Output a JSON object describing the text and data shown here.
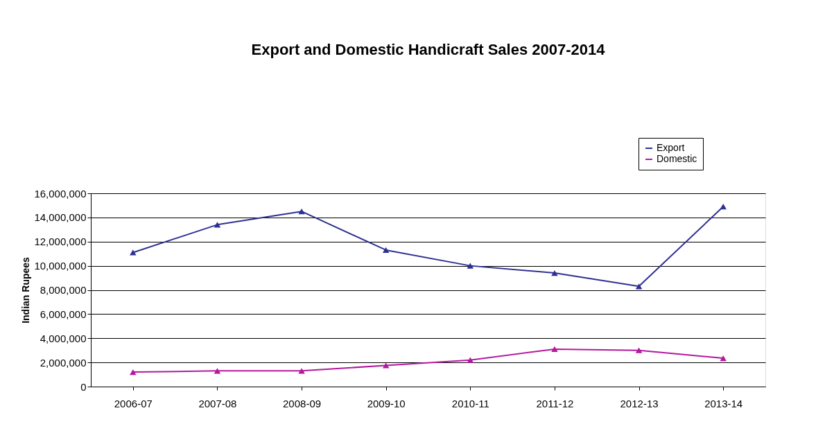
{
  "chart_data": {
    "type": "line",
    "title": "Export and Domestic Handicraft Sales 2007-2014",
    "ylabel": "Indian Rupees",
    "categories": [
      "2006-07",
      "2007-08",
      "2008-09",
      "2009-10",
      "2010-11",
      "2011-12",
      "2012-13",
      "2013-14"
    ],
    "series": [
      {
        "name": "Export",
        "color": "#2e3192",
        "values": [
          11100000,
          13400000,
          14500000,
          11300000,
          10000000,
          9400000,
          8300000,
          14900000
        ]
      },
      {
        "name": "Domestic",
        "color": "#b5179e",
        "values": [
          1200000,
          1300000,
          1300000,
          1750000,
          2200000,
          3100000,
          3000000,
          2350000
        ]
      }
    ],
    "ylim": [
      0,
      16000000
    ],
    "yticks": [
      0,
      {
        "value": 2000000,
        "label": "2,000,000"
      },
      {
        "value": 4000000,
        "label": "4,000,000"
      },
      {
        "value": 6000000,
        "label": "6,000,000"
      },
      {
        "value": 8000000,
        "label": "8,000,000"
      },
      {
        "value": 10000000,
        "label": "10,000,000"
      },
      {
        "value": 12000000,
        "label": "12,000,000"
      },
      {
        "value": 14000000,
        "label": "14,000,000"
      },
      {
        "value": 16000000,
        "label": "16,000,000"
      }
    ],
    "grid": "y",
    "legend": "top right",
    "marker": "triangle",
    "line_style": "solid"
  }
}
